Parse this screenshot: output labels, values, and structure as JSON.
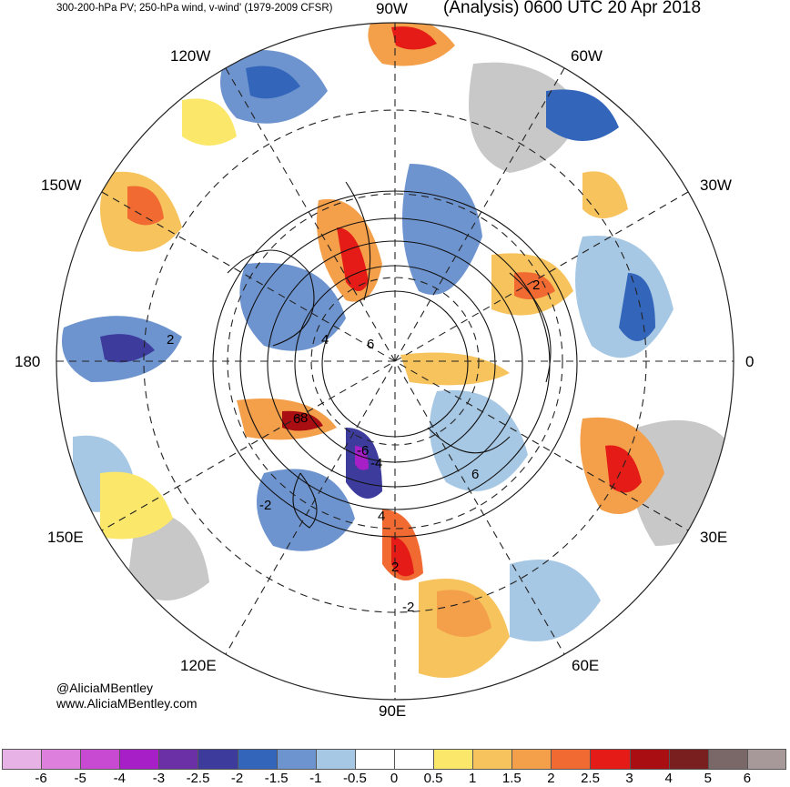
{
  "header": {
    "left": "300-200-hPa PV; 250-hPa wind, v-wind' (1979-2009 CFSR)",
    "right": "(Analysis) 0600 UTC 20 Apr 2018"
  },
  "longitude_labels": {
    "w90": "90W",
    "w120": "120W",
    "w60": "60W",
    "w150": "150W",
    "w30": "30W",
    "d180": "180",
    "d0": "0",
    "e150": "150E",
    "e30": "30E",
    "e120": "120E",
    "e60": "60E",
    "e90": "90E"
  },
  "credit": {
    "handle": "@AliciaMBentley",
    "website": "www.AliciaMBentley.com"
  },
  "contour_labels": [
    "2",
    "4",
    "6",
    "8",
    "2",
    "4",
    "6",
    "-2",
    "-2",
    "-4",
    "-6",
    "6",
    "2"
  ],
  "colorbar": {
    "colors": [
      "#e7b3e7",
      "#dd80dd",
      "#c84ad2",
      "#a71fc6",
      "#6b2fa6",
      "#3d3b9c",
      "#3366bb",
      "#6e94cf",
      "#a7c8e4",
      "#ffffff",
      "#ffffff",
      "#fbe86a",
      "#f7c35c",
      "#f49f4a",
      "#f06a32",
      "#e41b16",
      "#a80e12",
      "#7a1f1f",
      "#7a6868",
      "#a79999"
    ],
    "ticks": [
      "-6",
      "-5",
      "-4",
      "-3",
      "-2.5",
      "-2",
      "-1.5",
      "-1",
      "-0.5",
      "0",
      "0.5",
      "1",
      "1.5",
      "2",
      "2.5",
      "3",
      "4",
      "5",
      "6"
    ]
  }
}
